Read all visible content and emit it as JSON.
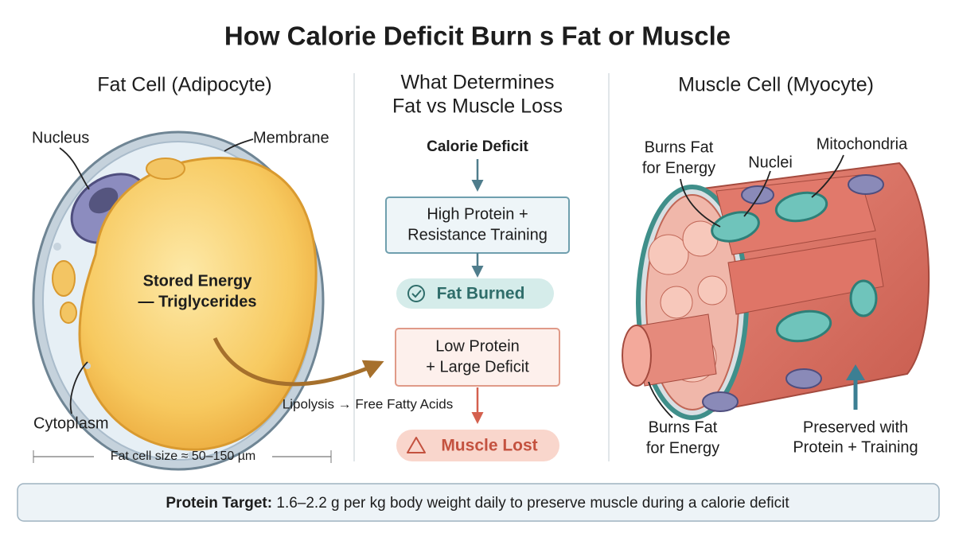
{
  "title": "How Calorie Deficit Burn s Fat or Muscle",
  "fat_cell": {
    "title": "Fat Cell (Adipocyte)",
    "nucleus": "Nucleus",
    "membrane": "Membrane",
    "stored_energy": [
      "Stored Energy",
      "— Triglycerides"
    ],
    "cytoplasm": "Cytoplasm",
    "size_note": "Fat cell size ≈ 50–150 µm",
    "lipolysis": "Lipolysis → Free Fatty Acids"
  },
  "determinants": {
    "title": [
      "What Determines",
      "Fat vs Muscle Loss"
    ],
    "start": "Calorie Deficit",
    "high_protein": {
      "box": [
        "High Protein +",
        "Resistance Training"
      ],
      "result": "Fat Burned"
    },
    "low_protein": {
      "box": [
        "Low Protein",
        "+ Large Deficit"
      ],
      "result": "Muscle Lost"
    }
  },
  "muscle_cell": {
    "title": "Muscle Cell (Myocyte)",
    "burns_fat_top": [
      "Burns Fat",
      "for Energy"
    ],
    "nuclei": "Nuclei",
    "mitochondria": "Mitochondria",
    "burns_fat_bottom": [
      "Burns Fat",
      "for Energy"
    ],
    "preserved": [
      "Preserved with",
      "Protein + Training"
    ]
  },
  "footer": {
    "label": "Protein Target:",
    "text": "1.6–2.2 g per kg body weight daily to preserve muscle during a calorie deficit"
  }
}
